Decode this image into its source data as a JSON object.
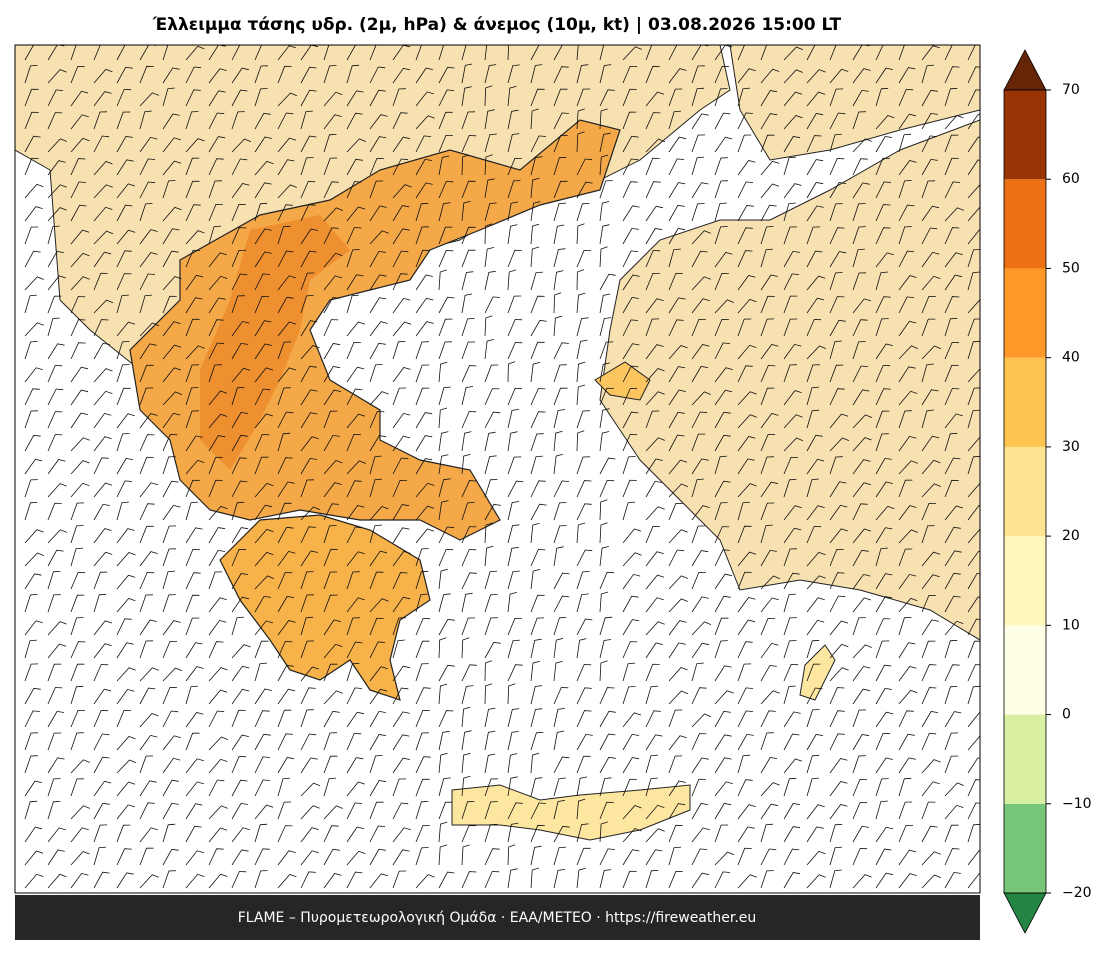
{
  "title": "Έλλειμμα τάσης υδρ. (2μ, hPa) & άνεμος (10μ, kt)  |  03.08.2026 15:00 LT",
  "footer": "FLAME – Πυρομετεωρολογική Ομάδα · ΕΑΑ/METEO · https://fireweather.eu",
  "colorbar": {
    "ticks": [
      {
        "value": -20,
        "label": "−20"
      },
      {
        "value": -10,
        "label": "−10"
      },
      0,
      10,
      20,
      30,
      40,
      50,
      60,
      70
    ],
    "colors": [
      "#78c679",
      "#d9f0a3",
      "#ffffe5",
      "#fff7bc",
      "#fee391",
      "#fec44f",
      "#fe9929",
      "#ec7014",
      "#993404"
    ],
    "under_color": "#238443",
    "over_color": "#662506"
  }
}
